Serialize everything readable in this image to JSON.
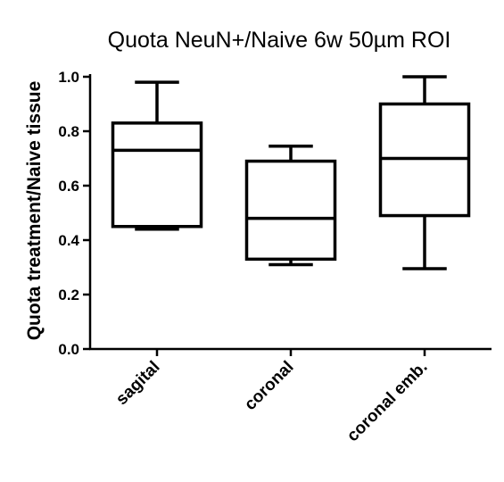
{
  "chart_data": {
    "type": "box",
    "title": "Quota NeuN+/Naive 6w 50µm ROI",
    "xlabel": "",
    "ylabel": "Quota treatment/Naive tissue",
    "ylim": [
      0.0,
      1.0
    ],
    "yticks": [
      "0.0",
      "0.2",
      "0.4",
      "0.6",
      "0.8",
      "1.0"
    ],
    "grid": false,
    "categories": [
      "sagital",
      "coronal",
      "coronal emb."
    ],
    "boxes": [
      {
        "category": "sagital",
        "min": 0.44,
        "q1": 0.45,
        "median": 0.73,
        "q3": 0.83,
        "max": 0.98
      },
      {
        "category": "coronal",
        "min": 0.31,
        "q1": 0.33,
        "median": 0.48,
        "q3": 0.69,
        "max": 0.745
      },
      {
        "category": "coronal emb.",
        "min": 0.295,
        "q1": 0.49,
        "median": 0.7,
        "q3": 0.9,
        "max": 1.0
      }
    ]
  }
}
